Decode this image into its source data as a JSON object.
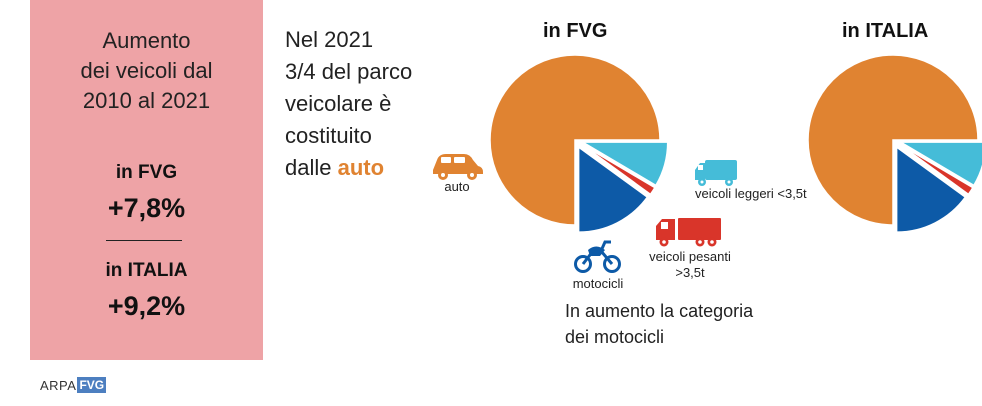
{
  "panel": {
    "title_lines": [
      "Aumento",
      "dei veicoli dal",
      "2010 al 2021"
    ],
    "fvg_label": "in FVG",
    "fvg_value": "+7,8%",
    "italia_label": "in ITALIA",
    "italia_value": "+9,2%"
  },
  "headline": {
    "lines": [
      "Nel 2021",
      "3/4 del parco",
      "veicolare è",
      "costituito"
    ],
    "last_prefix": "dalle ",
    "accent": "auto"
  },
  "logo": {
    "arpa": "ARPA",
    "fvg": "FVG"
  },
  "labels": {
    "auto": "auto",
    "motocicli": "motocicli",
    "leggeri": "veicoli leggeri <3,5t",
    "pesanti_line1": "veicoli pesanti",
    "pesanti_line2": ">3,5t"
  },
  "note": [
    "In aumento la categoria",
    "dei motocicli"
  ],
  "colors": {
    "auto": "#e08331",
    "motocicli": "#0d5aa7",
    "pesanti": "#d9352a",
    "leggeri": "#45bcd8",
    "panel": "#eea3a6"
  },
  "chart_data": [
    {
      "type": "pie",
      "title": "in FVG",
      "categories": [
        "auto",
        "veicoli leggeri <3,5t",
        "veicoli pesanti >3,5t",
        "motocicli"
      ],
      "values": [
        75,
        8.5,
        1.5,
        15
      ]
    },
    {
      "type": "pie",
      "title": "in ITALIA",
      "categories": [
        "auto",
        "veicoli leggeri <3,5t",
        "veicoli pesanti >3,5t",
        "motocicli"
      ],
      "values": [
        75,
        8.5,
        1.5,
        15
      ]
    }
  ]
}
